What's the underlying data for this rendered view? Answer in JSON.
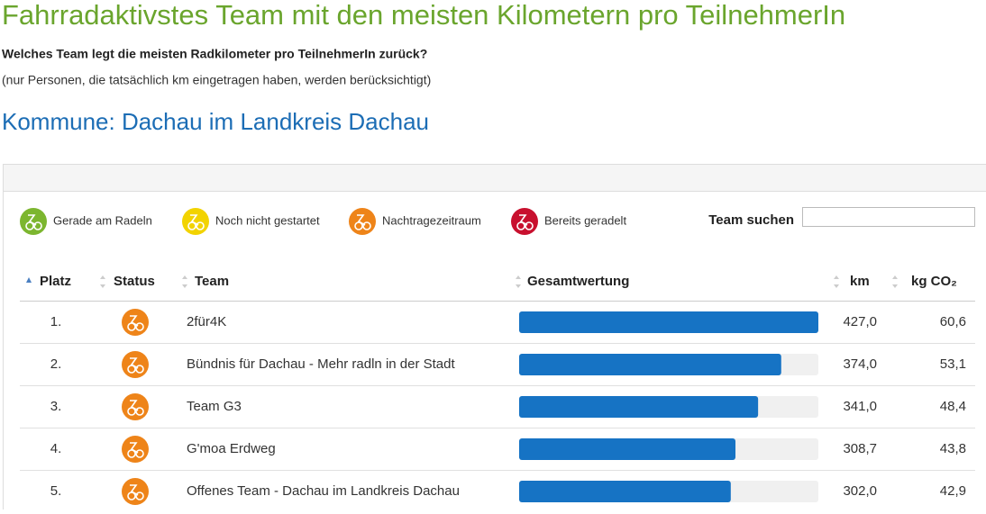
{
  "header": {
    "title": "Fahrradaktivstes Team mit den meisten Kilometern pro TeilnehmerIn",
    "question": "Welches Team legt die meisten Radkilometer pro TeilnehmerIn zurück?",
    "note": "(nur Personen, die tatsächlich km eingetragen haben, werden berücksichtigt)",
    "subtitle": "Kommune: Dachau im Landkreis Dachau"
  },
  "legend": [
    {
      "label": "Gerade am Radeln",
      "color": "#7cb62f"
    },
    {
      "label": "Noch nicht gestartet",
      "color": "#f2d300"
    },
    {
      "label": "Nachtragezeitraum",
      "color": "#ee8419"
    },
    {
      "label": "Bereits geradelt",
      "color": "#c8102e"
    }
  ],
  "search": {
    "label": "Team suchen"
  },
  "table": {
    "columns": [
      "Platz",
      "Status",
      "Team",
      "Gesamtwertung",
      "km",
      "kg CO₂"
    ],
    "rows": [
      {
        "rank": "1.",
        "team": "2für4K",
        "km": {
          "value": 427.0,
          "label": "427,0"
        },
        "co2": "60,6"
      },
      {
        "rank": "2.",
        "team": "Bündnis für Dachau - Mehr radln in der Stadt",
        "km": {
          "value": 374.0,
          "label": "374,0"
        },
        "co2": "53,1"
      },
      {
        "rank": "3.",
        "team": "Team G3",
        "km": {
          "value": 341.0,
          "label": "341,0"
        },
        "co2": "48,4"
      },
      {
        "rank": "4.",
        "team": "G'moa Erdweg",
        "km": {
          "value": 308.7,
          "label": "308,7"
        },
        "co2": "43,8"
      },
      {
        "rank": "5.",
        "team": "Offenes Team - Dachau im Landkreis Dachau",
        "km": {
          "value": 302.0,
          "label": "302,0"
        },
        "co2": "42,9"
      }
    ]
  }
}
